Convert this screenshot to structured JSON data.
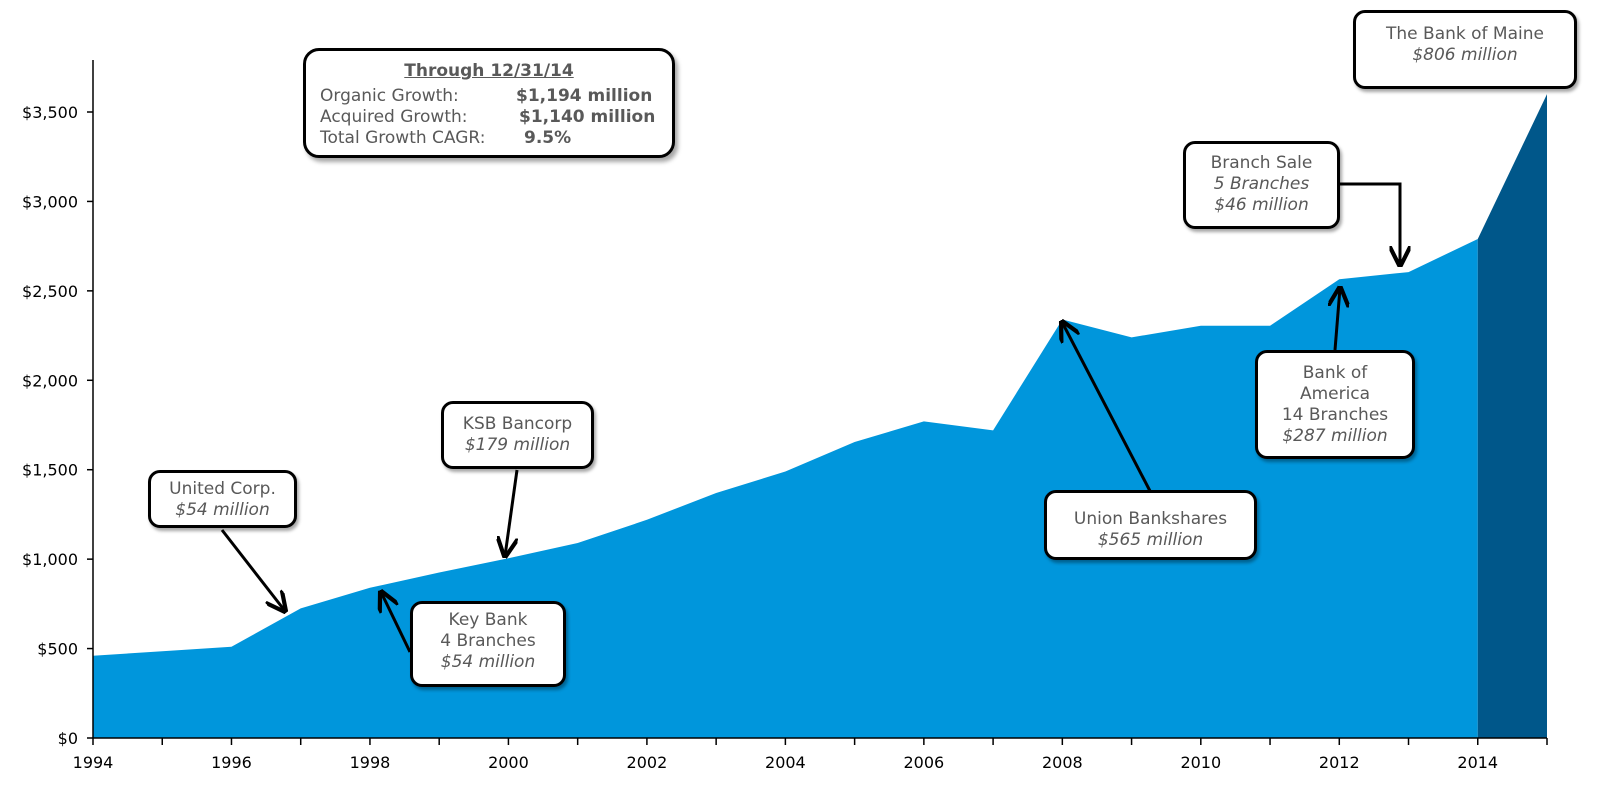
{
  "summary": {
    "title": "Through 12/31/14",
    "rows": [
      {
        "label": "Organic Growth:",
        "value": "$1,194 million"
      },
      {
        "label": "Acquired Growth:",
        "value": "$1,140 million"
      },
      {
        "label": "Total Growth CAGR:",
        "value": "9.5%"
      }
    ]
  },
  "annotations": {
    "united": {
      "name": "United Corp.",
      "amount": "$54 million"
    },
    "key_bank": {
      "name": "Key Bank",
      "branches": "4 Branches",
      "amount": "$54 million"
    },
    "ksb": {
      "name": "KSB Bancorp",
      "amount": "$179 million"
    },
    "union": {
      "name": "Union Bankshares",
      "amount": "$565 million"
    },
    "boa": {
      "name_line1": "Bank of",
      "name_line2": "America",
      "branches": "14 Branches",
      "amount": "$287 million"
    },
    "branch_sale": {
      "name": "Branch Sale",
      "branches": "5 Branches",
      "amount": "$46 million"
    },
    "bank_of_maine": {
      "name": "The Bank of Maine",
      "amount": "$806 million"
    }
  },
  "chart_data": {
    "type": "area",
    "x": [
      1994,
      1995,
      1996,
      1997,
      1998,
      1999,
      2000,
      2001,
      2002,
      2003,
      2004,
      2005,
      2006,
      2007,
      2008,
      2009,
      2010,
      2011,
      2012,
      2013,
      2014,
      2015
    ],
    "series": [
      {
        "values": [
          460,
          485,
          510,
          725,
          840,
          925,
          1005,
          1090,
          1220,
          1370,
          1490,
          1655,
          1770,
          1720,
          2340,
          2240,
          2305,
          2305,
          2565,
          2605,
          2790,
          3600
        ]
      }
    ],
    "colors": [
      "#0096dc",
      "#00578a"
    ],
    "xlim": [
      1994,
      2015
    ],
    "ylim": [
      0,
      3800
    ],
    "xticks": [
      "1994",
      "1996",
      "1998",
      "2000",
      "2002",
      "2004",
      "2006",
      "2008",
      "2010",
      "2012",
      "2014"
    ],
    "yticks": [
      "$0",
      "$500",
      "$1,000",
      "$1,500",
      "$2,000",
      "$2,500",
      "$3,000",
      "$3,500"
    ],
    "grid": false
  }
}
